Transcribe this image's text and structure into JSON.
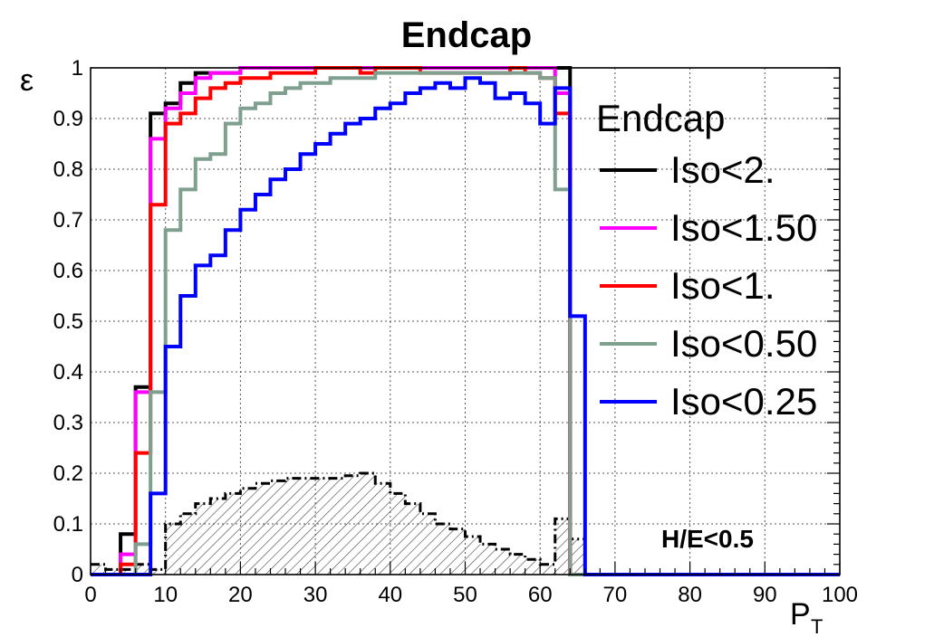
{
  "chart_data": {
    "type": "line",
    "title": "Endcap",
    "xlabel": "P",
    "xlabel_sub": "T",
    "ylabel": "ε",
    "xlim": [
      0,
      100
    ],
    "ylim": [
      0,
      1
    ],
    "grid": true,
    "x_ticks": [
      0,
      10,
      20,
      30,
      40,
      50,
      60,
      70,
      80,
      90,
      100
    ],
    "y_ticks": [
      "0",
      "0.1",
      "0.2",
      "0.3",
      "0.4",
      "0.5",
      "0.6",
      "0.7",
      "0.8",
      "0.9",
      "1"
    ],
    "bin_edges": [
      0,
      2,
      4,
      6,
      8,
      10,
      12,
      14,
      16,
      18,
      20,
      22,
      24,
      26,
      28,
      30,
      32,
      34,
      36,
      38,
      40,
      42,
      44,
      46,
      48,
      50,
      52,
      54,
      56,
      58,
      60,
      62,
      64,
      66,
      68,
      70,
      72,
      74,
      76,
      78,
      80,
      82,
      84,
      86,
      88,
      90,
      92,
      94,
      96,
      98,
      100
    ],
    "legend": {
      "title": "Endcap",
      "placement": "right"
    },
    "series": [
      {
        "name": "Iso<2.",
        "color": "#000000",
        "values": [
          0,
          0,
          0.08,
          0.37,
          0.91,
          0.93,
          0.97,
          0.99,
          0.99,
          0.99,
          1.0,
          1.0,
          1.0,
          1.0,
          1.0,
          1.0,
          1.0,
          1.0,
          1.0,
          1.0,
          1.0,
          1.0,
          1.0,
          1.0,
          1.0,
          1.0,
          1.0,
          1.0,
          1.0,
          1.0,
          1.0,
          1.0,
          0,
          0,
          0,
          0,
          0,
          0,
          0,
          0,
          0,
          0,
          0,
          0,
          0,
          0,
          0,
          0,
          0,
          0
        ]
      },
      {
        "name": "Iso<1.50",
        "color": "#ff00ff",
        "values": [
          0,
          0,
          0.04,
          0.36,
          0.86,
          0.92,
          0.95,
          0.98,
          0.99,
          0.99,
          1.0,
          1.0,
          1.0,
          1.0,
          1.0,
          1.0,
          1.0,
          1.0,
          1.0,
          1.0,
          1.0,
          1.0,
          1.0,
          1.0,
          1.0,
          1.0,
          1.0,
          1.0,
          1.0,
          1.0,
          1.0,
          0.95,
          0,
          0,
          0,
          0,
          0,
          0,
          0,
          0,
          0,
          0,
          0,
          0,
          0,
          0,
          0,
          0,
          0,
          0
        ]
      },
      {
        "name": "Iso<1.",
        "color": "#ff0000",
        "values": [
          0,
          0,
          0.02,
          0.24,
          0.73,
          0.89,
          0.91,
          0.94,
          0.96,
          0.97,
          0.98,
          0.98,
          0.99,
          0.99,
          0.99,
          1.0,
          1.0,
          1.0,
          0.99,
          1.0,
          1.0,
          1.0,
          0.99,
          0.99,
          0.99,
          0.99,
          0.99,
          0.99,
          1.0,
          0.99,
          0.98,
          0.91,
          0,
          0,
          0,
          0,
          0,
          0,
          0,
          0,
          0,
          0,
          0,
          0,
          0,
          0,
          0,
          0,
          0,
          0
        ]
      },
      {
        "name": "Iso<0.50",
        "color": "#7f9f8f",
        "values": [
          0,
          0,
          0,
          0.06,
          0.36,
          0.68,
          0.76,
          0.82,
          0.83,
          0.89,
          0.92,
          0.93,
          0.95,
          0.96,
          0.97,
          0.97,
          0.98,
          0.98,
          0.98,
          0.99,
          0.99,
          0.99,
          0.99,
          0.99,
          0.99,
          0.99,
          0.99,
          0.99,
          0.99,
          0.99,
          0.98,
          0.76,
          0,
          0,
          0,
          0,
          0,
          0,
          0,
          0,
          0,
          0,
          0,
          0,
          0,
          0,
          0,
          0,
          0,
          0
        ]
      },
      {
        "name": "Iso<0.25",
        "color": "#0000ff",
        "values": [
          0,
          0,
          0,
          0,
          0.16,
          0.45,
          0.55,
          0.61,
          0.63,
          0.68,
          0.72,
          0.75,
          0.78,
          0.8,
          0.83,
          0.85,
          0.87,
          0.89,
          0.9,
          0.92,
          0.93,
          0.95,
          0.96,
          0.97,
          0.96,
          0.98,
          0.97,
          0.94,
          0.95,
          0.93,
          0.89,
          0.96,
          0.51,
          0,
          0,
          0,
          0,
          0,
          0,
          0,
          0,
          0,
          0,
          0,
          0,
          0,
          0,
          0,
          0,
          0
        ]
      }
    ],
    "background_histogram": {
      "color": "#000000",
      "values": [
        0.02,
        0.01,
        0.01,
        0.02,
        0.01,
        0.1,
        0.12,
        0.14,
        0.15,
        0.16,
        0.17,
        0.18,
        0.185,
        0.19,
        0.19,
        0.19,
        0.19,
        0.195,
        0.2,
        0.18,
        0.16,
        0.14,
        0.12,
        0.1,
        0.09,
        0.075,
        0.06,
        0.05,
        0.04,
        0.03,
        0.02,
        0.11,
        0.07,
        0,
        0,
        0,
        0,
        0,
        0,
        0,
        0,
        0,
        0,
        0,
        0,
        0,
        0,
        0,
        0,
        0
      ]
    },
    "annotations": [
      "H/E<0.5"
    ]
  }
}
